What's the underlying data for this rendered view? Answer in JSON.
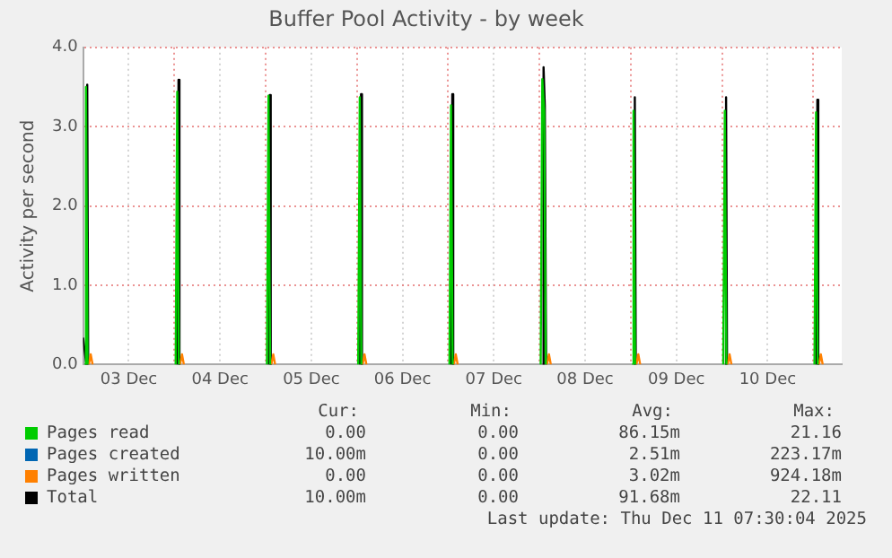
{
  "chart_data": {
    "type": "line",
    "title": "Buffer Pool Activity - by week",
    "ylabel": "Activity per second",
    "xlim": [
      "2025-12-03T00:00",
      "2025-12-11T07:30"
    ],
    "xticks": [
      {
        "value": "2025-12-03T00:00",
        "label": null
      },
      {
        "value": "2025-12-03T12:00",
        "label": "03 Dec"
      },
      {
        "value": "2025-12-04T00:00",
        "label": null
      },
      {
        "value": "2025-12-04T12:00",
        "label": "04 Dec"
      },
      {
        "value": "2025-12-05T00:00",
        "label": null
      },
      {
        "value": "2025-12-05T12:00",
        "label": "05 Dec"
      },
      {
        "value": "2025-12-06T00:00",
        "label": null
      },
      {
        "value": "2025-12-06T12:00",
        "label": "06 Dec"
      },
      {
        "value": "2025-12-07T00:00",
        "label": null
      },
      {
        "value": "2025-12-07T12:00",
        "label": "07 Dec"
      },
      {
        "value": "2025-12-08T00:00",
        "label": null
      },
      {
        "value": "2025-12-08T12:00",
        "label": "08 Dec"
      },
      {
        "value": "2025-12-09T00:00",
        "label": null
      },
      {
        "value": "2025-12-09T12:00",
        "label": "09 Dec"
      },
      {
        "value": "2025-12-10T00:00",
        "label": null
      },
      {
        "value": "2025-12-10T12:00",
        "label": "10 Dec"
      },
      {
        "value": "2025-12-11T00:00",
        "label": null
      }
    ],
    "ylim": [
      0,
      4
    ],
    "yticks": [
      {
        "value": 0,
        "label": "0.0"
      },
      {
        "value": 1,
        "label": "1.0"
      },
      {
        "value": 2,
        "label": "2.0"
      },
      {
        "value": 3,
        "label": "3.0"
      },
      {
        "value": 4,
        "label": "4.0"
      }
    ],
    "grid": true,
    "legend": "bottom",
    "marker": "none",
    "line_style": "solid",
    "series": [
      {
        "name": "Pages read",
        "color": "#00cc00",
        "x": [
          "2025-12-03T00:20",
          "2025-12-03T00:45",
          "2025-12-03T01:10",
          "2025-12-03T12:00",
          "2025-12-04T00:20",
          "2025-12-04T00:45",
          "2025-12-04T01:10",
          "2025-12-04T12:00",
          "2025-12-05T00:20",
          "2025-12-05T00:45",
          "2025-12-05T01:10",
          "2025-12-05T12:00",
          "2025-12-06T00:20",
          "2025-12-06T00:45",
          "2025-12-06T01:10",
          "2025-12-06T12:00",
          "2025-12-07T00:20",
          "2025-12-07T00:45",
          "2025-12-07T01:10",
          "2025-12-07T12:00",
          "2025-12-08T00:20",
          "2025-12-08T00:45",
          "2025-12-08T01:15",
          "2025-12-08T01:40",
          "2025-12-08T12:00",
          "2025-12-09T00:20",
          "2025-12-09T00:45",
          "2025-12-09T01:10",
          "2025-12-09T12:00",
          "2025-12-10T00:20",
          "2025-12-10T00:45",
          "2025-12-10T01:10",
          "2025-12-10T12:00",
          "2025-12-11T00:20",
          "2025-12-11T00:45",
          "2025-12-11T01:10"
        ],
        "values": [
          0,
          3.5,
          0,
          null,
          0,
          3.44,
          0,
          null,
          0,
          3.39,
          0,
          null,
          0,
          3.37,
          0,
          null,
          0,
          3.27,
          0,
          null,
          0,
          3.6,
          3.2,
          0,
          null,
          0,
          3.2,
          0,
          null,
          0,
          3.2,
          0,
          null,
          0,
          3.18,
          0
        ]
      },
      {
        "name": "Pages created",
        "color": "#0066b3"
      },
      {
        "name": "Pages written",
        "color": "#ff8000",
        "x": [
          "2025-12-03T01:30",
          "2025-12-03T02:00",
          "2025-12-03T02:30",
          "2025-12-03T12:00",
          "2025-12-04T01:30",
          "2025-12-04T02:00",
          "2025-12-04T02:30",
          "2025-12-04T12:00",
          "2025-12-05T01:30",
          "2025-12-05T02:00",
          "2025-12-05T02:30",
          "2025-12-05T12:00",
          "2025-12-06T01:30",
          "2025-12-06T02:00",
          "2025-12-06T02:30",
          "2025-12-06T12:00",
          "2025-12-07T01:30",
          "2025-12-07T02:00",
          "2025-12-07T02:30",
          "2025-12-07T12:00",
          "2025-12-08T02:00",
          "2025-12-08T02:30",
          "2025-12-08T03:00",
          "2025-12-08T12:00",
          "2025-12-09T01:30",
          "2025-12-09T02:00",
          "2025-12-09T02:30",
          "2025-12-09T12:00",
          "2025-12-10T01:30",
          "2025-12-10T02:00",
          "2025-12-10T02:30",
          "2025-12-10T12:00",
          "2025-12-11T01:30",
          "2025-12-11T02:00",
          "2025-12-11T02:30"
        ],
        "values": [
          0,
          0.13,
          0,
          null,
          0,
          0.13,
          0,
          null,
          0,
          0.13,
          0,
          null,
          0,
          0.13,
          0,
          null,
          0,
          0.13,
          0,
          null,
          0,
          0.13,
          0,
          null,
          0,
          0.13,
          0,
          null,
          0,
          0.13,
          0,
          null,
          0,
          0.13,
          0
        ]
      },
      {
        "name": "Total",
        "color": "#000000",
        "x": [
          "2025-12-03T00:00",
          "2025-12-03T00:50",
          "2025-12-03T01:05",
          "2025-12-03T01:20",
          "2025-12-03T12:00",
          "2025-12-04T00:50",
          "2025-12-04T01:05",
          "2025-12-04T01:20",
          "2025-12-04T12:00",
          "2025-12-05T00:50",
          "2025-12-05T01:05",
          "2025-12-05T01:20",
          "2025-12-05T12:00",
          "2025-12-06T00:50",
          "2025-12-06T01:05",
          "2025-12-06T01:20",
          "2025-12-06T12:00",
          "2025-12-07T00:50",
          "2025-12-07T01:05",
          "2025-12-07T01:20",
          "2025-12-07T12:00",
          "2025-12-08T00:50",
          "2025-12-08T01:05",
          "2025-12-08T01:25",
          "2025-12-08T01:45",
          "2025-12-08T12:00",
          "2025-12-09T00:50",
          "2025-12-09T01:05",
          "2025-12-09T01:20",
          "2025-12-09T12:00",
          "2025-12-10T00:50",
          "2025-12-10T01:05",
          "2025-12-10T01:20",
          "2025-12-10T12:00",
          "2025-12-11T00:50",
          "2025-12-11T01:05",
          "2025-12-11T01:20"
        ],
        "values": [
          0.34,
          0,
          3.53,
          0,
          null,
          0,
          3.59,
          0,
          null,
          0,
          3.4,
          0,
          null,
          0,
          3.41,
          0,
          null,
          0,
          3.41,
          0,
          null,
          0,
          3.75,
          3.26,
          0,
          null,
          0,
          3.37,
          0,
          null,
          0,
          3.37,
          0,
          null,
          0,
          3.34,
          0
        ]
      }
    ],
    "annotations": [
      "Cur:",
      "Min:",
      "Avg:",
      "Max:",
      "0.00",
      "0.00",
      "86.15m",
      "21.16",
      "10.00m",
      "0.00",
      "2.51m",
      "223.17m",
      "0.00",
      "0.00",
      "3.02m",
      "924.18m",
      "10.00m",
      "0.00",
      "91.68m",
      "22.11",
      "Last update: Thu Dec 11 07:30:04 2025"
    ]
  }
}
